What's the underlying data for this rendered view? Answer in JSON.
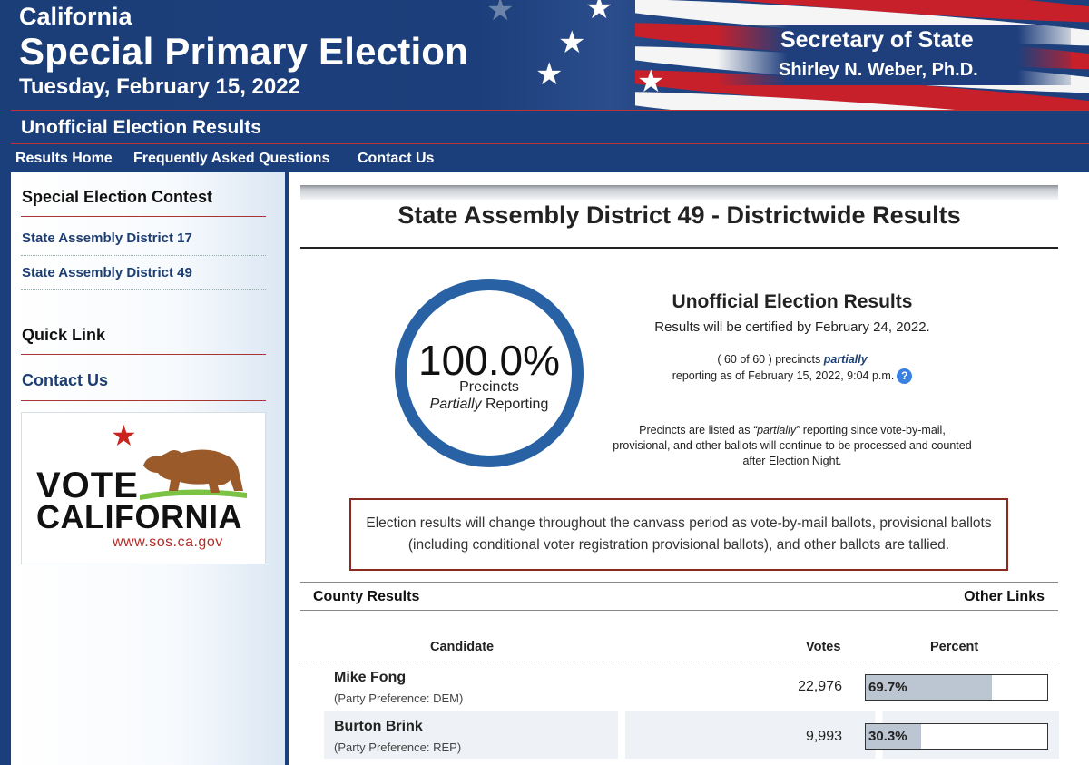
{
  "header": {
    "state": "California",
    "title": "Special Primary Election",
    "date": "Tuesday, February 15, 2022",
    "sos_title": "Secretary of State",
    "sos_name": "Shirley N. Weber, Ph.D."
  },
  "banner": {
    "label": "Unofficial Election Results"
  },
  "nav": {
    "items": [
      {
        "label": "Results Home"
      },
      {
        "label": "Frequently Asked Questions"
      },
      {
        "label": "Contact Us"
      }
    ]
  },
  "sidebar": {
    "contest_heading": "Special Election Contest",
    "contests": [
      {
        "label": "State Assembly District 17"
      },
      {
        "label": "State Assembly District 49"
      }
    ],
    "quick_link_heading": "Quick Link",
    "contact_link": "Contact Us",
    "logo": {
      "line1": "VOTE",
      "line2": "CALIFORNIA",
      "url": "www.sos.ca.gov"
    }
  },
  "main": {
    "title": "State Assembly District 49 - Districtwide Results",
    "reporting": {
      "percent": "100.0%",
      "line1": "Precincts",
      "line2_italic": "Partially",
      "line2_rest": " Reporting"
    },
    "summary": {
      "title": "Unofficial Election Results",
      "certified": "Results will be certified by February 24, 2022.",
      "precincts_pre": "( 60 of 60 ) precincts ",
      "precincts_em": "partially",
      "as_of": "reporting as of February 15, 2022, 9:04 p.m.",
      "help_icon": "question-mark-icon",
      "note_pre": "Precincts are listed as ",
      "note_em": "“partially”",
      "note_post": " reporting since vote-by-mail, provisional, and other ballots will continue to be processed and counted after Election Night."
    },
    "notice": "Election results will change throughout the canvass period as vote-by-mail ballots, provisional ballots (including conditional voter registration provisional ballots), and other ballots are tallied.",
    "county_bar": {
      "left": "County Results",
      "right": "Other Links"
    },
    "table": {
      "headers": {
        "candidate": "Candidate",
        "votes": "Votes",
        "percent": "Percent"
      },
      "rows": [
        {
          "name": "Mike Fong",
          "party": "(Party Preference: DEM)",
          "votes": "22,976",
          "percent_label": "69.7%",
          "percent": 69.7
        },
        {
          "name": "Burton Brink",
          "party": "(Party Preference: REP)",
          "votes": "9,993",
          "percent_label": "30.3%",
          "percent": 30.3
        }
      ]
    }
  },
  "colors": {
    "navy": "#1a3f7a",
    "ring": "#2862a4",
    "accent_red": "#8c2a20",
    "bar_fill": "#bcc6d2"
  }
}
